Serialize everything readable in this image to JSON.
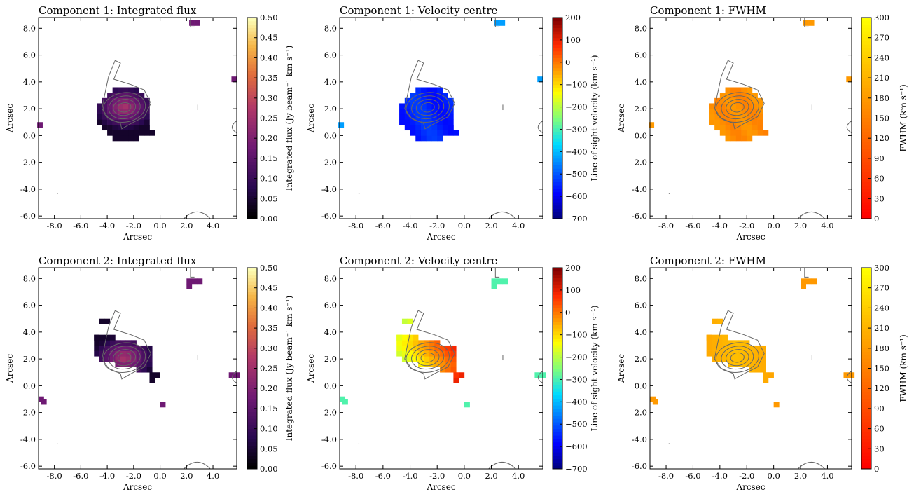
{
  "figure": {
    "panels": [
      {
        "title": "Component 1: Integrated flux",
        "cbar_label": "Integrated flux (Jy beam⁻¹ km s⁻¹)",
        "cmap": "flux",
        "cbar_ticks": [
          "0.00",
          "0.05",
          "0.10",
          "0.15",
          "0.20",
          "0.25",
          "0.30",
          "0.35",
          "0.40",
          "0.45",
          "0.50"
        ]
      },
      {
        "title": "Component 1: Velocity centre",
        "cbar_label": "Line of sight velocity (km s⁻¹)",
        "cmap": "jet",
        "cbar_ticks": [
          "−700",
          "−600",
          "−500",
          "−400",
          "−300",
          "−200",
          "−100",
          "0",
          "100",
          "200"
        ]
      },
      {
        "title": "Component 1: FWHM",
        "cbar_label": "FWHM (km s⁻¹)",
        "cmap": "autumn",
        "cbar_ticks": [
          "0",
          "30",
          "60",
          "90",
          "120",
          "150",
          "180",
          "210",
          "240",
          "270",
          "300"
        ]
      },
      {
        "title": "Component 2: Integrated flux",
        "cbar_label": "Integrated flux (Jy beam⁻¹ km s⁻¹)",
        "cmap": "flux",
        "cbar_ticks": [
          "0.00",
          "0.05",
          "0.10",
          "0.15",
          "0.20",
          "0.25",
          "0.30",
          "0.35",
          "0.40",
          "0.45",
          "0.50"
        ]
      },
      {
        "title": "Component 2: Velocity centre",
        "cbar_label": "Line of sight velocity (km s⁻¹)",
        "cmap": "jet",
        "cbar_ticks": [
          "−700",
          "−600",
          "−500",
          "−400",
          "−300",
          "−200",
          "−100",
          "0",
          "100",
          "200"
        ]
      },
      {
        "title": "Component 2: FWHM",
        "cbar_label": "FWHM (km s⁻¹)",
        "cmap": "autumn",
        "cbar_ticks": [
          "0",
          "30",
          "60",
          "90",
          "120",
          "150",
          "180",
          "210",
          "240",
          "270",
          "300"
        ]
      }
    ]
  },
  "chart_data": {
    "type": "heatmap",
    "xlabel": "Arcsec",
    "ylabel": "Arcsec",
    "xlim": [
      -9.2,
      5.8
    ],
    "ylim": [
      -6.2,
      8.8
    ],
    "x_ticks": [
      "-8.0",
      "-6.0",
      "-4.0",
      "-2.0",
      "0.0",
      "2.0",
      "4.0"
    ],
    "y_ticks": [
      "-6.0",
      "-4.0",
      "-2.0",
      "0.0",
      "2.0",
      "4.0",
      "6.0",
      "8.0"
    ],
    "x_tick_values": [
      -8,
      -6,
      -4,
      -2,
      0,
      2,
      4
    ],
    "y_tick_values": [
      -6,
      -4,
      -2,
      0,
      2,
      4,
      6,
      8
    ],
    "colorbars": {
      "flux": {
        "range": [
          0.0,
          0.5
        ],
        "unit": "Jy beam^-1 km s^-1"
      },
      "velocity": {
        "range": [
          -700,
          200
        ],
        "unit": "km s^-1"
      },
      "fwhm": {
        "range": [
          0,
          300
        ],
        "unit": "km s^-1"
      }
    },
    "contour_center": [
      -2.7,
      2.1
    ],
    "colors": {
      "contour": "#666666",
      "axes": "#000000"
    }
  }
}
